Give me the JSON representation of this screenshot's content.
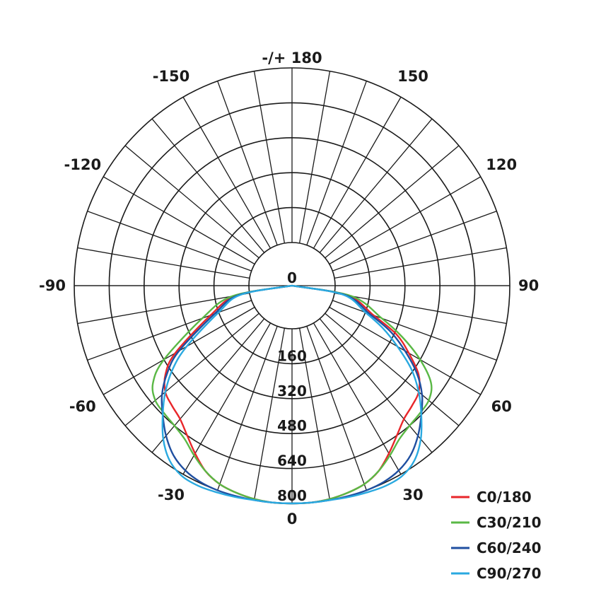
{
  "chart_data": {
    "type": "polar",
    "r_ticks": [
      0,
      160,
      320,
      480,
      640,
      800
    ],
    "r_max": 800,
    "angle_step_deg": 10,
    "angle_labels": [
      {
        "angle": 0,
        "text": "0"
      },
      {
        "angle": 30,
        "text": "30"
      },
      {
        "angle": 60,
        "text": "60"
      },
      {
        "angle": 90,
        "text": "90"
      },
      {
        "angle": 120,
        "text": "120"
      },
      {
        "angle": 150,
        "text": "150"
      },
      {
        "angle": 180,
        "text": "-/+ 180"
      },
      {
        "angle": -150,
        "text": "-150"
      },
      {
        "angle": -120,
        "text": "-120"
      },
      {
        "angle": -90,
        "text": "-90"
      },
      {
        "angle": -60,
        "text": "-60"
      },
      {
        "angle": -30,
        "text": "-30"
      }
    ],
    "legend_position": "bottom-right",
    "series": [
      {
        "name": "C0/180",
        "color": "#e8262a",
        "angles": [
          -90,
          -80,
          -70,
          -60,
          -55,
          -50,
          -45,
          -40,
          -35,
          -30,
          -25,
          -20,
          -15,
          -10,
          -5,
          0,
          5,
          10,
          15,
          20,
          25,
          30,
          35,
          40,
          45,
          50,
          55,
          60,
          65,
          70,
          80,
          90
        ],
        "values": [
          0,
          60,
          200,
          420,
          510,
          560,
          580,
          600,
          640,
          690,
          740,
          770,
          785,
          795,
          800,
          800,
          800,
          795,
          785,
          770,
          740,
          690,
          640,
          600,
          580,
          560,
          510,
          420,
          330,
          200,
          60,
          0
        ]
      },
      {
        "name": "C30/210",
        "color": "#5ab845",
        "angles": [
          -90,
          -80,
          -70,
          -60,
          -55,
          -50,
          -45,
          -40,
          -35,
          -30,
          -25,
          -20,
          -15,
          -10,
          -5,
          0,
          5,
          10,
          15,
          20,
          25,
          30,
          35,
          40,
          45,
          50,
          55,
          60,
          65,
          70,
          80,
          90
        ],
        "values": [
          0,
          80,
          240,
          480,
          580,
          620,
          630,
          640,
          660,
          700,
          740,
          770,
          785,
          795,
          800,
          800,
          800,
          795,
          785,
          770,
          740,
          700,
          660,
          640,
          630,
          620,
          580,
          480,
          360,
          240,
          80,
          0
        ]
      },
      {
        "name": "C60/240",
        "color": "#1f4fa0",
        "angles": [
          -90,
          -80,
          -70,
          -60,
          -55,
          -50,
          -45,
          -40,
          -35,
          -30,
          -25,
          -20,
          -15,
          -10,
          -5,
          0,
          5,
          10,
          15,
          20,
          25,
          30,
          35,
          40,
          45,
          50,
          55,
          60,
          65,
          70,
          80,
          90
        ],
        "values": [
          0,
          50,
          180,
          400,
          500,
          580,
          640,
          700,
          750,
          780,
          795,
          800,
          800,
          800,
          800,
          800,
          800,
          800,
          800,
          800,
          795,
          780,
          750,
          700,
          640,
          580,
          500,
          400,
          300,
          180,
          50,
          0
        ]
      },
      {
        "name": "C90/270",
        "color": "#2aa9e0",
        "angles": [
          -90,
          -80,
          -70,
          -60,
          -55,
          -50,
          -45,
          -40,
          -35,
          -30,
          -25,
          -20,
          -15,
          -10,
          -5,
          0,
          5,
          10,
          15,
          20,
          25,
          30,
          35,
          40,
          45,
          50,
          55,
          60,
          65,
          70,
          80,
          90
        ],
        "values": [
          0,
          40,
          160,
          360,
          470,
          560,
          640,
          720,
          780,
          810,
          815,
          810,
          805,
          800,
          800,
          800,
          800,
          800,
          805,
          810,
          815,
          810,
          780,
          720,
          640,
          560,
          470,
          360,
          260,
          160,
          40,
          0
        ]
      }
    ]
  }
}
